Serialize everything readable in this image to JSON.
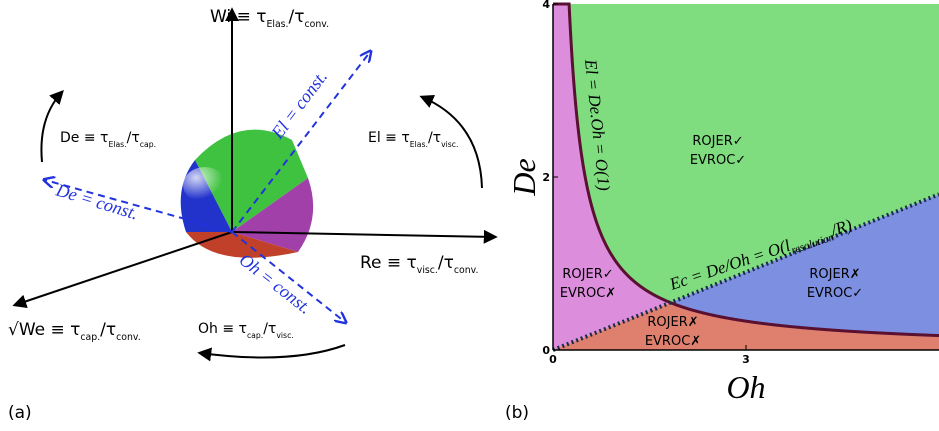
{
  "panel_a": {
    "tag": "(a)",
    "axis_labels": [
      {
        "main": "Wi ≡ τ",
        "sub1": "Elas.",
        "mid": "/τ",
        "sub2": "conv."
      },
      {
        "main": "Re ≡ τ",
        "sub1": "visc.",
        "mid": "/τ",
        "sub2": "conv."
      },
      {
        "main": "√We ≡ τ",
        "sub1": "cap.",
        "mid": "/τ",
        "sub2": "conv."
      },
      {
        "main": "De ≡ τ",
        "sub1": "Elas.",
        "mid": "/τ",
        "sub2": "cap."
      },
      {
        "main": "El ≡ τ",
        "sub1": "Elas.",
        "mid": "/τ",
        "sub2": "visc."
      },
      {
        "main": "Oh ≡ τ",
        "sub1": "cap.",
        "mid": "/τ",
        "sub2": "visc."
      }
    ],
    "const_lines": [
      "El = const.",
      "De = const.",
      "Oh = const."
    ]
  },
  "chart_data": {
    "type": "phase",
    "tag": "(b)",
    "xlabel": "Oh",
    "ylabel": "De",
    "xlim": [
      0,
      6
    ],
    "ylim": [
      0,
      4
    ],
    "xticks": [
      0,
      3
    ],
    "yticks": [
      0,
      2,
      4
    ],
    "el_boundary": {
      "label": "El = De.Oh = O(1)",
      "product": 1,
      "color": "#5a1030"
    },
    "ec_boundary": {
      "pre": "Ec = De/Oh = O(l",
      "sub": "resolution",
      "post": "/R)",
      "ratio": 0.3,
      "color": "#1a2a4a"
    },
    "regions": [
      {
        "lines": [
          "ROJER✓",
          "EVROC✓"
        ],
        "color": "#7fdd7f"
      },
      {
        "lines": [
          "ROJER✓",
          "EVROC✗"
        ],
        "color": "#dc8ddc"
      },
      {
        "lines": [
          "ROJER✗",
          "EVROC✓"
        ],
        "color": "#7c8fe0"
      },
      {
        "lines": [
          "ROJER✗",
          "EVROC✗"
        ],
        "color": "#df806f"
      }
    ]
  }
}
